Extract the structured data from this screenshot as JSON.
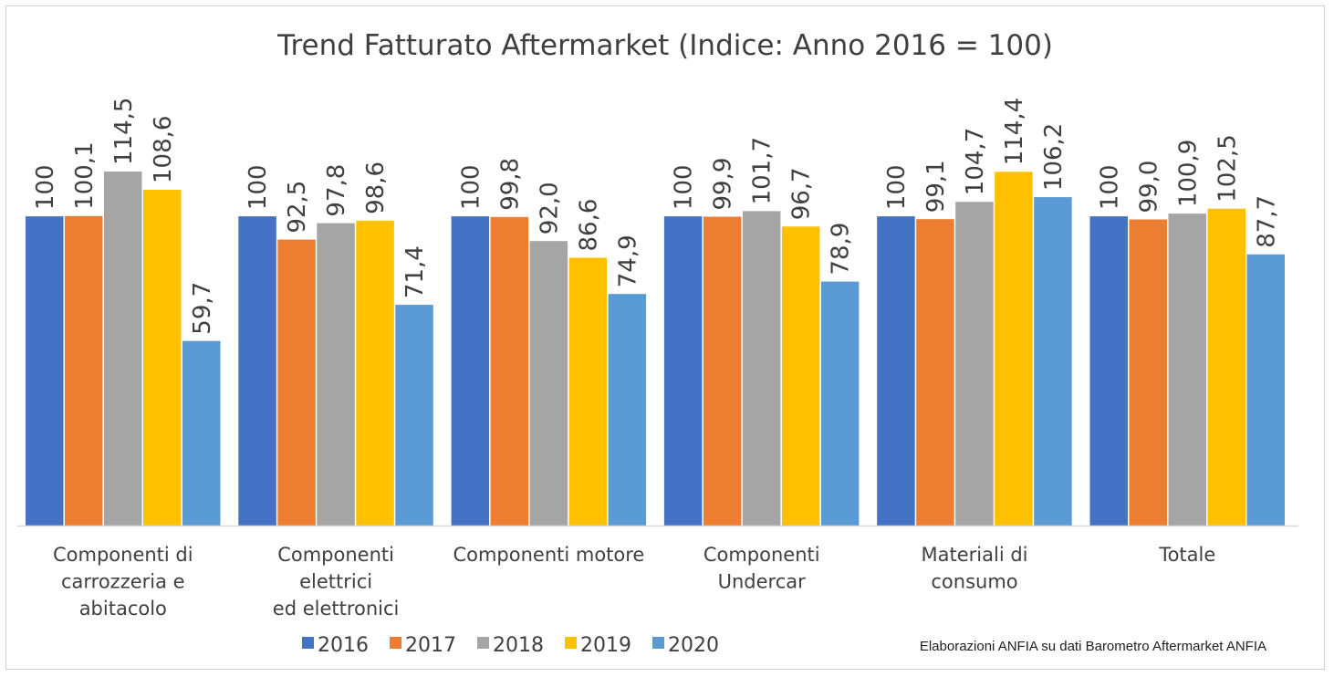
{
  "chart_data": {
    "type": "bar",
    "title": "Trend Fatturato Aftermarket (Indice: Anno 2016 = 100)",
    "categories": [
      [
        "Componenti di",
        "carrozzeria e",
        "abitacolo"
      ],
      [
        "Componenti",
        "elettrici",
        "ed elettronici"
      ],
      [
        "Componenti motore"
      ],
      [
        "Componenti",
        "Undercar"
      ],
      [
        "Materiali di",
        "consumo"
      ],
      [
        "Totale"
      ]
    ],
    "series": [
      {
        "name": "2016",
        "color": "#4472C4",
        "values": [
          100,
          100,
          100,
          100,
          100,
          100
        ],
        "labels": [
          "100",
          "100",
          "100",
          "100",
          "100",
          "100"
        ]
      },
      {
        "name": "2017",
        "color": "#ED7D31",
        "values": [
          100.1,
          92.5,
          99.8,
          99.9,
          99.1,
          99.0
        ],
        "labels": [
          "100,1",
          "92,5",
          "99,8",
          "99,9",
          "99,1",
          "99,0"
        ]
      },
      {
        "name": "2018",
        "color": "#A5A5A5",
        "values": [
          114.5,
          97.8,
          92.0,
          101.7,
          104.7,
          100.9
        ],
        "labels": [
          "114,5",
          "97,8",
          "92,0",
          "101,7",
          "104,7",
          "100,9"
        ]
      },
      {
        "name": "2019",
        "color": "#FFC000",
        "values": [
          108.6,
          98.6,
          86.6,
          96.7,
          114.4,
          102.5
        ],
        "labels": [
          "108,6",
          "98,6",
          "86,6",
          "96,7",
          "114,4",
          "102,5"
        ]
      },
      {
        "name": "2020",
        "color": "#5B9BD5",
        "values": [
          59.7,
          71.4,
          74.9,
          78.9,
          106.2,
          87.7
        ],
        "labels": [
          "59,7",
          "71,4",
          "74,9",
          "78,9",
          "106,2",
          "87,7"
        ]
      }
    ],
    "ylim": [
      0,
      114.5
    ],
    "legend": "bottom",
    "source_note": "Elaborazioni ANFIA su dati Barometro Aftermarket ANFIA"
  }
}
